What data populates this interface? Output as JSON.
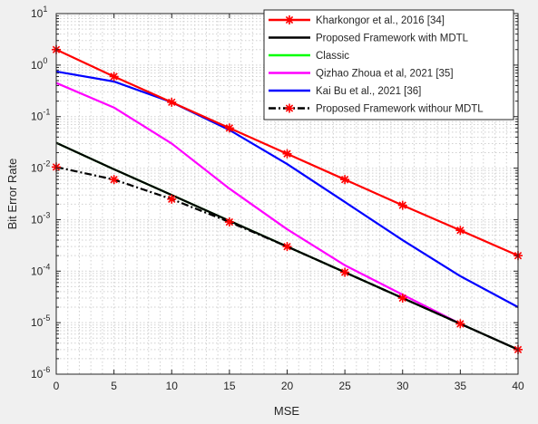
{
  "chart_data": {
    "type": "line",
    "xlabel": "MSE",
    "ylabel": "Bit Error Rate",
    "xlim": [
      0,
      40
    ],
    "ylim": [
      1e-06,
      10
    ],
    "yscale": "log",
    "grid": "on, major and minor dotted",
    "legend_position": "top-right",
    "x_ticks": [
      "0",
      "5",
      "10",
      "15",
      "20",
      "25",
      "30",
      "35",
      "40"
    ],
    "y_ticks": [
      {
        "base": "10",
        "exp": "1"
      },
      {
        "base": "10",
        "exp": "0"
      },
      {
        "base": "10",
        "exp": "-1"
      },
      {
        "base": "10",
        "exp": "-2"
      },
      {
        "base": "10",
        "exp": "-3"
      },
      {
        "base": "10",
        "exp": "-4"
      },
      {
        "base": "10",
        "exp": "-5"
      },
      {
        "base": "10",
        "exp": "-6"
      }
    ],
    "series": [
      {
        "name": "Kharkongor et al., 2016 [34]",
        "color": "#ff0000",
        "line": "solid",
        "marker": "star",
        "x": [
          0,
          5,
          10,
          15,
          20,
          25,
          30,
          35,
          40
        ],
        "values": [
          2.0,
          0.6,
          0.19,
          0.06,
          0.019,
          0.006,
          0.0019,
          0.00062,
          0.0002
        ]
      },
      {
        "name": "Proposed Framework with MDTL",
        "color": "#000000",
        "line": "solid",
        "marker": "none",
        "x": [
          0,
          5,
          10,
          15,
          20,
          25,
          30,
          35,
          40
        ],
        "values": [
          0.031,
          0.0095,
          0.003,
          0.00095,
          0.0003,
          9.5e-05,
          3e-05,
          9.5e-06,
          3e-06
        ]
      },
      {
        "name": "Classic",
        "color": "#00ff00",
        "line": "solid",
        "marker": "none",
        "x": [
          0,
          5,
          10,
          15,
          20,
          25,
          30,
          35,
          40
        ],
        "values": [
          0.031,
          0.0095,
          0.003,
          0.00095,
          0.0003,
          9.5e-05,
          3e-05,
          9.5e-06,
          3e-06
        ]
      },
      {
        "name": "Qizhao Zhoua et al, 2021 [35]",
        "color": "#ff00ff",
        "line": "solid",
        "marker": "none",
        "x": [
          0,
          5,
          10,
          15,
          20,
          25,
          30,
          35,
          40
        ],
        "values": [
          0.45,
          0.15,
          0.03,
          0.004,
          0.00065,
          0.00013,
          3.5e-05,
          9.5e-06,
          3e-06
        ]
      },
      {
        "name": "Kai Bu et al., 2021 [36]",
        "color": "#0000ff",
        "line": "solid",
        "marker": "none",
        "x": [
          0,
          5,
          10,
          15,
          20,
          25,
          30,
          35,
          40
        ],
        "values": [
          0.75,
          0.48,
          0.19,
          0.055,
          0.012,
          0.0022,
          0.0004,
          8e-05,
          2e-05
        ]
      },
      {
        "name": "Proposed Framework withour MDTL",
        "color": "#000000",
        "marker_color": "#ff0000",
        "line": "dashdot",
        "marker": "star",
        "x": [
          0,
          5,
          10,
          15,
          20,
          25,
          30,
          35,
          40
        ],
        "values": [
          0.0105,
          0.006,
          0.0025,
          0.0009,
          0.0003,
          9.5e-05,
          3e-05,
          9.5e-06,
          3e-06
        ]
      }
    ]
  }
}
